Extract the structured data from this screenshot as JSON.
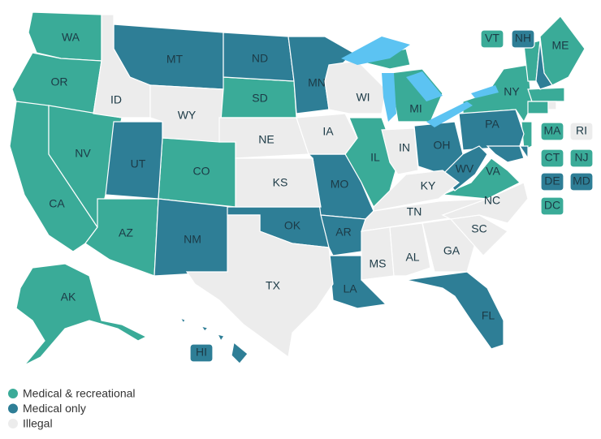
{
  "groups": [
    {
      "label": "Medical & recreational",
      "color": "#3aab98",
      "states": [
        "WA",
        "OR",
        "CA",
        "NV",
        "AZ",
        "CO",
        "SD",
        "IL",
        "MI",
        "VA",
        "NY",
        "ME",
        "VT",
        "MA",
        "CT",
        "NJ",
        "DC",
        "AK"
      ]
    },
    {
      "label": "Medical only",
      "color": "#2e7e96",
      "states": [
        "MT",
        "ND",
        "MN",
        "UT",
        "NM",
        "OK",
        "MO",
        "AR",
        "LA",
        "FL",
        "OH",
        "PA",
        "WV",
        "NH",
        "DE",
        "MD",
        "HI"
      ]
    },
    {
      "label": "Illegal",
      "color": "#ececec",
      "states": [
        "ID",
        "WY",
        "NE",
        "KS",
        "TX",
        "IA",
        "WI",
        "IN",
        "KY",
        "TN",
        "MS",
        "AL",
        "GA",
        "SC",
        "NC",
        "RI"
      ]
    }
  ]
}
